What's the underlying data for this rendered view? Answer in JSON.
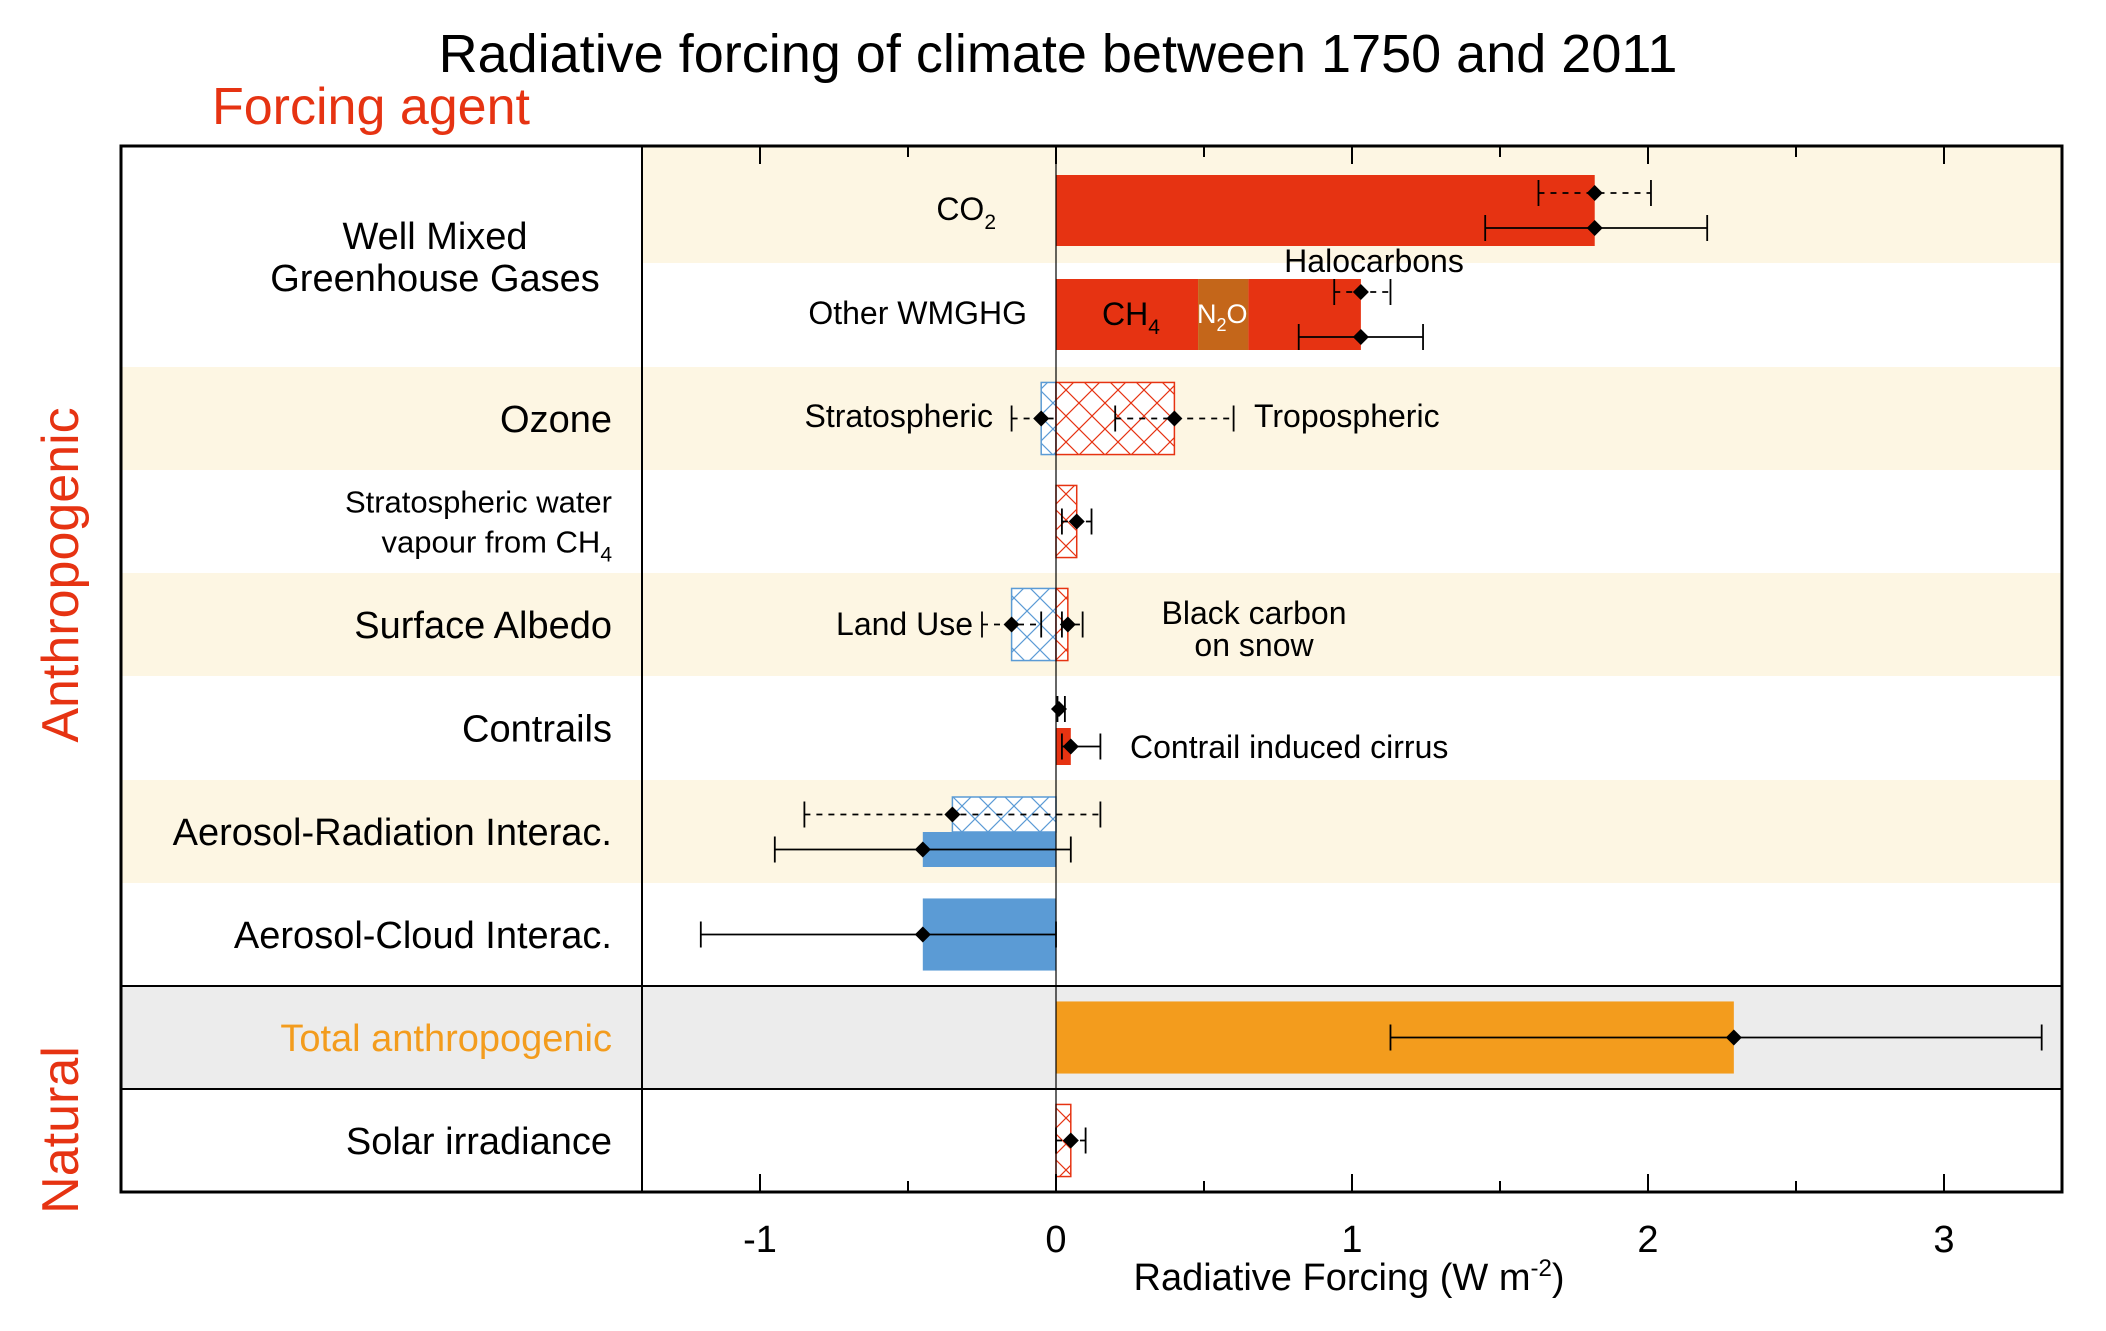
{
  "title": "Radiative forcing of climate between 1750 and 2011",
  "column_header": "Forcing agent",
  "group_labels": {
    "anthropogenic": "Anthropogenic",
    "natural": "Natural"
  },
  "colors": {
    "warming": "#e63312",
    "cooling": "#5b9bd5",
    "n2o": "#c4661a",
    "total": "#f39c1d",
    "band": "#fdf6e3",
    "total_band": "#ececec",
    "group_label": "#e63312",
    "total_label": "#f39c1d"
  },
  "row_labels": [
    {
      "lines": [
        "Well Mixed",
        "Greenhouse Gases"
      ]
    },
    {
      "lines": [
        "Ozone"
      ]
    },
    {
      "lines": [
        "Stratospheric water",
        "vapour from CH"
      ],
      "sub": "4"
    },
    {
      "lines": [
        "Surface Albedo"
      ]
    },
    {
      "lines": [
        "Contrails"
      ]
    },
    {
      "lines": [
        "Aerosol-Radiation Interac."
      ]
    },
    {
      "lines": [
        "Aerosol-Cloud Interac."
      ]
    },
    {
      "lines": [
        "Total anthropogenic"
      ]
    },
    {
      "lines": [
        "Solar irradiance"
      ]
    }
  ],
  "inner_labels": {
    "co2": "CO",
    "co2_sub": "2",
    "other_wmghg": "Other WMGHG",
    "halocarbons": "Halocarbons",
    "ch4": "CH",
    "ch4_sub": "4",
    "n2o_a": "N",
    "n2o_sub": "2",
    "n2o_b": "O",
    "stratospheric": "Stratospheric",
    "tropospheric": "Tropospheric",
    "land_use": "Land Use",
    "black_carbon_1": "Black carbon",
    "black_carbon_2": "on snow",
    "contrail_cirrus": "Contrail induced cirrus"
  },
  "chart_data": {
    "type": "bar",
    "orientation": "horizontal",
    "title": "Radiative forcing of climate between 1750 and 2011",
    "xlabel": "Radiative Forcing (W m",
    "xlabel_sup": "-2",
    "xlabel_end": ")",
    "xlim": [
      -1.4,
      3.4
    ],
    "xticks": [
      -1,
      0,
      1,
      2,
      3
    ],
    "xtick_labels": [
      "-1",
      "0",
      "1",
      "2",
      "3"
    ],
    "bars": [
      {
        "name": "CO2",
        "row": 0,
        "sub": "top",
        "segments": [
          {
            "from": 0,
            "to": 1.82,
            "color": "warming"
          }
        ],
        "ci_emission": [
          1.63,
          2.01
        ],
        "ci_abundance": [
          1.45,
          2.2
        ],
        "best": 1.82
      },
      {
        "name": "Other WMGHG",
        "row": 0,
        "sub": "bottom",
        "segments": [
          {
            "from": 0,
            "to": 0.48,
            "color": "warming"
          },
          {
            "from": 0.48,
            "to": 0.65,
            "color": "n2o"
          },
          {
            "from": 0.65,
            "to": 1.03,
            "color": "warming"
          }
        ],
        "ci_emission": [
          0.94,
          1.13
        ],
        "ci_abundance": [
          0.82,
          1.24
        ],
        "best": 1.03,
        "best_emission": 1.03
      },
      {
        "name": "Stratospheric ozone",
        "row": 1,
        "hatch": "cooling",
        "from": -0.05,
        "to": 0,
        "ci_emission": [
          -0.15,
          0.05
        ],
        "best": -0.05
      },
      {
        "name": "Tropospheric ozone",
        "row": 1,
        "hatch": "warming",
        "from": 0,
        "to": 0.4,
        "ci_emission": [
          0.2,
          0.6
        ],
        "best": 0.4
      },
      {
        "name": "Stratospheric water vapour",
        "row": 2,
        "hatch": "warming",
        "from": 0,
        "to": 0.07,
        "ci_emission": [
          0.02,
          0.12
        ],
        "best": 0.07
      },
      {
        "name": "Land Use",
        "row": 3,
        "hatch": "cooling",
        "from": -0.15,
        "to": 0,
        "ci_emission": [
          -0.25,
          -0.05
        ],
        "best": -0.15
      },
      {
        "name": "Black carbon on snow",
        "row": 3,
        "hatch": "warming",
        "from": 0,
        "to": 0.04,
        "ci_emission": [
          0.02,
          0.09
        ],
        "best": 0.04
      },
      {
        "name": "Contrails",
        "row": 4,
        "sub": "top",
        "ci_emission": [
          0.005,
          0.03
        ],
        "best": 0.01
      },
      {
        "name": "Contrail induced cirrus",
        "row": 4,
        "sub": "bottom",
        "segments": [
          {
            "from": 0,
            "to": 0.05,
            "color": "warming"
          }
        ],
        "ci_abundance": [
          0.02,
          0.15
        ],
        "best": 0.05
      },
      {
        "name": "Aerosol-Radiation emission",
        "row": 5,
        "sub": "top",
        "hatch": "cooling",
        "from": -0.35,
        "to": 0,
        "ci_emission": [
          -0.85,
          0.15
        ],
        "best": -0.35
      },
      {
        "name": "Aerosol-Radiation",
        "row": 5,
        "sub": "bottom",
        "segments": [
          {
            "from": -0.45,
            "to": 0,
            "color": "cooling"
          }
        ],
        "ci_abundance": [
          -0.95,
          0.05
        ],
        "best": -0.45
      },
      {
        "name": "Aerosol-Cloud",
        "row": 6,
        "segments": [
          {
            "from": -0.45,
            "to": 0,
            "color": "cooling"
          }
        ],
        "ci_abundance": [
          -1.2,
          0.0
        ],
        "best": -0.45
      },
      {
        "name": "Total anthropogenic",
        "row": 7,
        "segments": [
          {
            "from": 0,
            "to": 2.29,
            "color": "total"
          }
        ],
        "ci_abundance": [
          1.13,
          3.33
        ],
        "best": 2.29
      },
      {
        "name": "Solar irradiance",
        "row": 8,
        "hatch": "warming",
        "from": 0,
        "to": 0.05,
        "ci_emission": [
          0.0,
          0.1
        ],
        "best": 0.05
      }
    ]
  }
}
